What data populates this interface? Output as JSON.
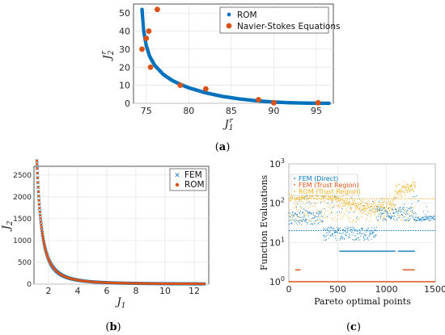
{
  "chart_data": [
    {
      "id": "a",
      "panel_label": "a",
      "type": "scatter",
      "xlabel_base": "J",
      "xlabel_sub": "1",
      "xlabel_sup": "r",
      "ylabel_base": "J",
      "ylabel_sub": "2",
      "ylabel_sup": "r",
      "xlim": [
        73.5,
        97
      ],
      "ylim": [
        0,
        55
      ],
      "xticks": [
        75,
        80,
        85,
        90,
        95
      ],
      "yticks": [
        0,
        10,
        20,
        30,
        40,
        50
      ],
      "grid": true,
      "legend_position": "top-right",
      "series": [
        {
          "name": "ROM",
          "color": "#0072BD",
          "marker": "dot",
          "curve": {
            "x": [
              74.5,
              74.7,
              75.0,
              75.4,
              76.0,
              77.0,
              78.0,
              79.0,
              80.0,
              82.0,
              84.0,
              86.0,
              88.0,
              90.0,
              92.0,
              94.0,
              96.5
            ],
            "y": [
              52,
              40,
              32,
              26,
              21,
              16,
              12.8,
              10.5,
              8.6,
              5.8,
              3.8,
              2.4,
              1.4,
              0.7,
              0.3,
              0.1,
              0
            ]
          }
        },
        {
          "name": "Navier-Stokes Equations",
          "color": "#D95319",
          "marker": "circle",
          "points": [
            [
              74.5,
              30
            ],
            [
              75.0,
              36
            ],
            [
              75.3,
              40
            ],
            [
              75.5,
              20
            ],
            [
              76.3,
              52
            ],
            [
              79.0,
              10
            ],
            [
              82.0,
              8
            ],
            [
              88.2,
              2
            ],
            [
              90.0,
              0.3
            ],
            [
              95.2,
              0.3
            ]
          ]
        }
      ]
    },
    {
      "id": "b",
      "panel_label": "b",
      "type": "scatter",
      "xlabel_base": "J",
      "xlabel_sub": "1",
      "ylabel_base": "J",
      "ylabel_sub": "2",
      "xlim": [
        1,
        13
      ],
      "ylim": [
        0,
        2700
      ],
      "xticks": [
        2,
        4,
        6,
        8,
        10,
        12
      ],
      "yticks": [
        0,
        500,
        1000,
        1500,
        2000,
        2500
      ],
      "grid": true,
      "legend_position": "top-right",
      "series": [
        {
          "name": "FEM",
          "color": "#0072BD",
          "marker": "x"
        },
        {
          "name": "ROM",
          "color": "#D95319",
          "marker": "dot"
        }
      ],
      "curve_model": {
        "form": "y = a / (x - b)^p",
        "a": 1500,
        "b": 0.45,
        "p": 2.2,
        "x_range": [
          1.2,
          12.7
        ]
      }
    },
    {
      "id": "c",
      "panel_label": "c",
      "type": "scatter",
      "xlabel": "Pareto optimal points",
      "ylabel": "Function Evaluations",
      "xlim": [
        0,
        1500
      ],
      "ylim_log10": [
        0,
        3
      ],
      "xticks": [
        0,
        500,
        1000,
        1500
      ],
      "yticks": [
        "10^0",
        "10^1",
        "10^2",
        "10^3"
      ],
      "yscale": "log",
      "grid": true,
      "legend_position": "top-left",
      "series": [
        {
          "name": "FEM (Direct)",
          "color": "#0072BD",
          "mean": 20
        },
        {
          "name": "FEM (Trust Region)",
          "color": "#D95319",
          "mean": 1
        },
        {
          "name": "ROM (Trust Region)",
          "color": "#EDB120",
          "mean": 130
        }
      ]
    }
  ]
}
